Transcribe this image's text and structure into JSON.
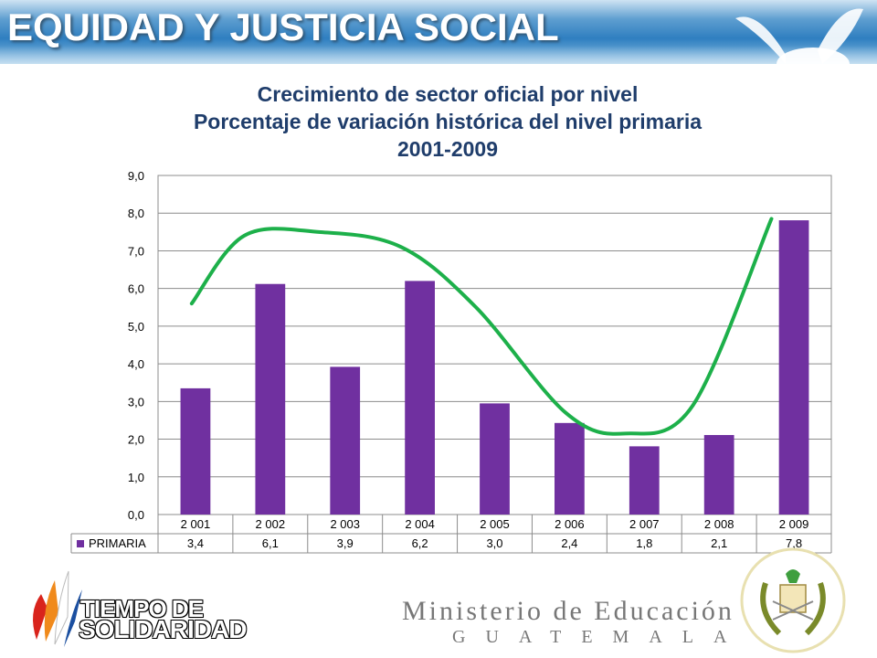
{
  "header": {
    "title": "EQUIDAD Y JUSTICIA SOCIAL"
  },
  "chart_data": {
    "type": "bar",
    "title_lines": [
      "Crecimiento de sector oficial por nivel",
      "Porcentaje de variación histórica del nivel primaria",
      "2001-2009"
    ],
    "categories": [
      "2 001",
      "2 002",
      "2 003",
      "2 004",
      "2 005",
      "2 006",
      "2 007",
      "2 008",
      "2 009"
    ],
    "series": [
      {
        "name": "PRIMARIA",
        "values": [
          3.35,
          6.12,
          3.92,
          6.2,
          2.95,
          2.43,
          1.81,
          2.11,
          7.81
        ],
        "labels": [
          "3,4",
          "6,1",
          "3,9",
          "6,2",
          "3,0",
          "2,4",
          "1,8",
          "2,1",
          "7,8"
        ],
        "color": "#7030a0"
      }
    ],
    "yticks": [
      "0,0",
      "1,0",
      "2,0",
      "3,0",
      "4,0",
      "5,0",
      "6,0",
      "7,0",
      "8,0",
      "9,0"
    ],
    "ylim": [
      0,
      9
    ],
    "grid": true,
    "legend": "data-table-left",
    "trend_color": "#1db04a"
  },
  "footer": {
    "logo_line1": "TIEMPO DE",
    "logo_line2": "SOLIDARIDAD",
    "ministry": "Ministerio de Educación",
    "country": "GUATEMALA"
  }
}
